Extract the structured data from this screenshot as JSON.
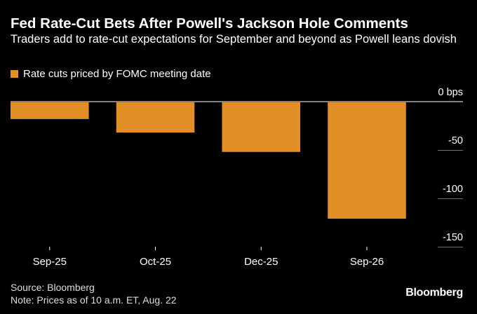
{
  "chart_data": {
    "type": "bar",
    "title": "Fed Rate-Cut Bets After Powell's Jackson Hole Comments",
    "subtitle": "Traders add to rate-cut expectations for September and beyond as Powell leans dovish",
    "categories": [
      "Sep-25",
      "Oct-25",
      "Dec-25",
      "Sep-26"
    ],
    "series": [
      {
        "name": "Rate cuts priced by FOMC meeting date",
        "values": [
          -18,
          -32,
          -52,
          -121
        ]
      }
    ],
    "ylim": [
      -150,
      0
    ],
    "yticks": [
      0,
      -50,
      -100,
      -150
    ],
    "ytick_labels": [
      "0 bps",
      "-50",
      "-100",
      "-150"
    ],
    "xlabel": "",
    "ylabel": "",
    "legend_position": "top-left"
  },
  "footer": {
    "source": "Source: Bloomberg",
    "note": "Note: Prices as of 10 a.m. ET, Aug. 22"
  },
  "brand": "Bloomberg",
  "colors": {
    "bar": "#e38f27",
    "background": "#000000",
    "text": "#ffffff",
    "grid": "#6e6e6e"
  }
}
